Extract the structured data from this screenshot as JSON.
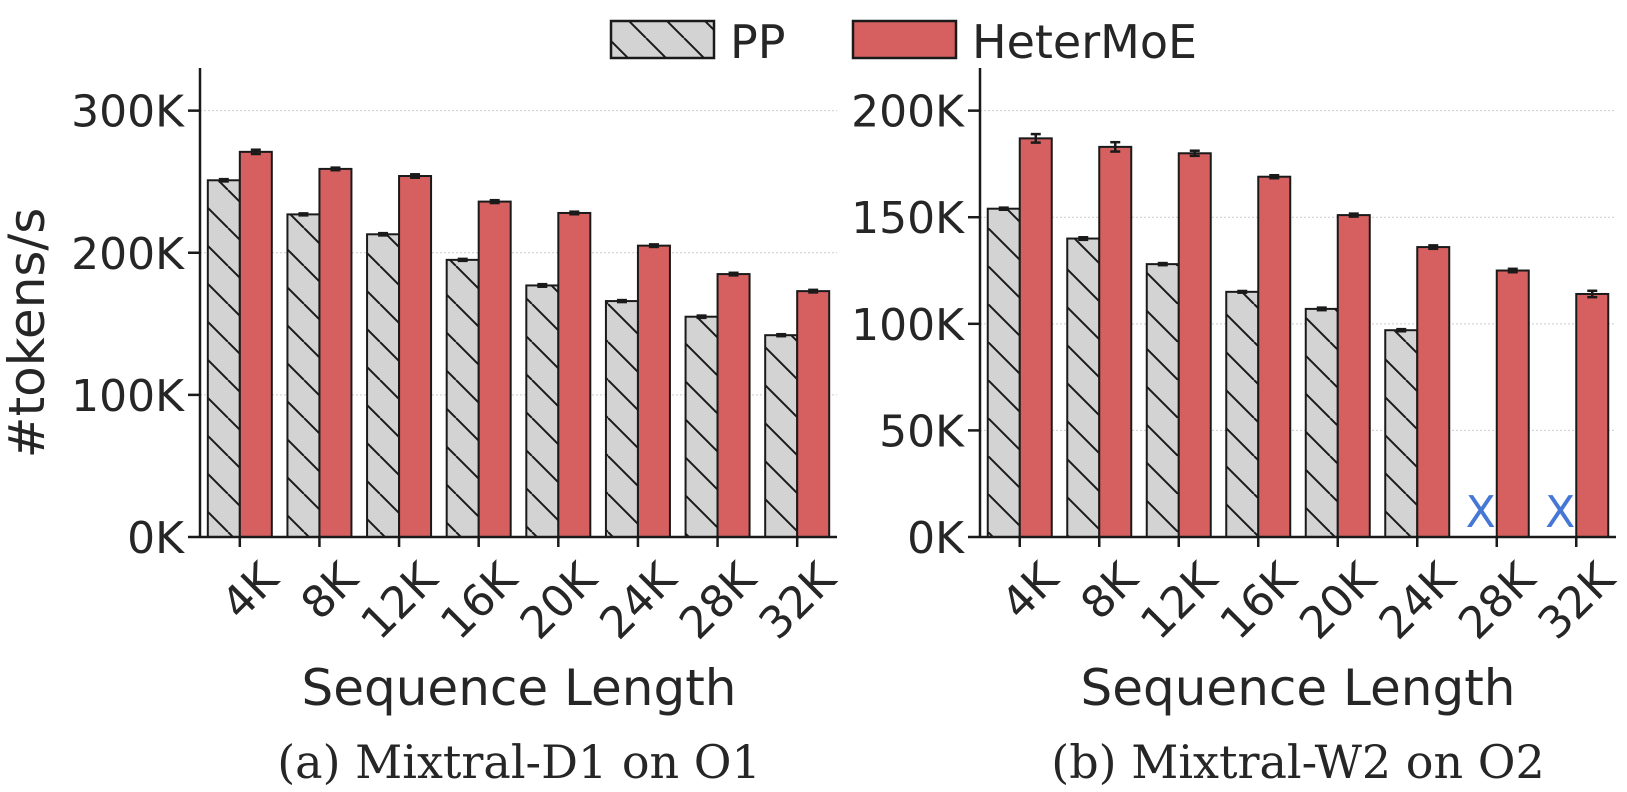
{
  "colors": {
    "pp": "#d3d3d3",
    "heter": "#d65f5f",
    "marker": "#4477d6",
    "edge": "#1a1a1a",
    "grid": "#cccccc"
  },
  "legend": {
    "pp_label": "PP",
    "heter_label": "HeterMoE"
  },
  "chart_data": [
    {
      "type": "bar",
      "caption": "(a) Mixtral-D1 on O1",
      "xlabel": "Sequence Length",
      "ylabel": "#tokens/s",
      "categories": [
        "4K",
        "8K",
        "12K",
        "16K",
        "20K",
        "24K",
        "28K",
        "32K"
      ],
      "ylim": [
        0,
        330000
      ],
      "yticks": [
        0,
        100000,
        200000,
        300000
      ],
      "ytick_labels": [
        "0K",
        "100K",
        "200K",
        "300K"
      ],
      "series": [
        {
          "name": "PP",
          "values": [
            251000,
            227000,
            213000,
            195000,
            177000,
            166000,
            155000,
            142000
          ],
          "errors": [
            800,
            700,
            800,
            700,
            900,
            700,
            800,
            700
          ]
        },
        {
          "name": "HeterMoE",
          "values": [
            271000,
            259000,
            254000,
            236000,
            228000,
            205000,
            185000,
            173000
          ],
          "errors": [
            1500,
            900,
            1200,
            1000,
            900,
            900,
            900,
            900
          ]
        }
      ],
      "missing": [],
      "missing_marker": "X"
    },
    {
      "type": "bar",
      "caption": "(b) Mixtral-W2 on O2",
      "xlabel": "Sequence Length",
      "ylabel": "",
      "categories": [
        "4K",
        "8K",
        "12K",
        "16K",
        "20K",
        "24K",
        "28K",
        "32K"
      ],
      "ylim": [
        0,
        220000
      ],
      "yticks": [
        0,
        50000,
        100000,
        150000,
        200000
      ],
      "ytick_labels": [
        "0K",
        "50K",
        "100K",
        "150K",
        "200K"
      ],
      "series": [
        {
          "name": "PP",
          "values": [
            154000,
            140000,
            128000,
            115000,
            107000,
            97000,
            0,
            0
          ],
          "errors": [
            500,
            600,
            500,
            400,
            600,
            500,
            0,
            0
          ]
        },
        {
          "name": "HeterMoE",
          "values": [
            187000,
            183000,
            180000,
            169000,
            151000,
            136000,
            125000,
            114000
          ],
          "errors": [
            2000,
            2200,
            1200,
            700,
            700,
            800,
            800,
            1500
          ]
        }
      ],
      "missing": [
        {
          "series": "PP",
          "category": "28K"
        },
        {
          "series": "PP",
          "category": "32K"
        }
      ],
      "missing_marker": "X"
    }
  ]
}
